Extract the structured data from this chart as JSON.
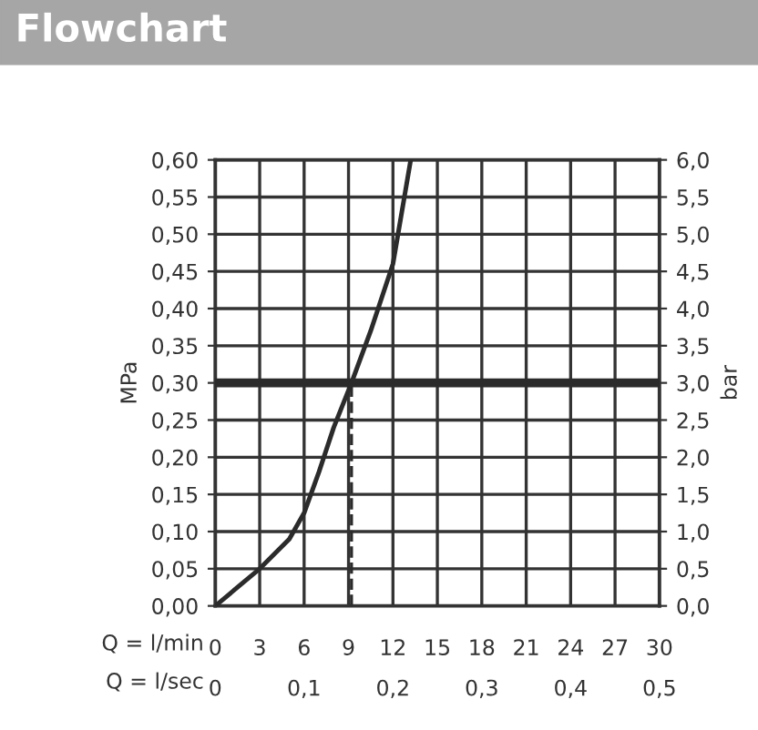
{
  "chart_data": {
    "type": "line",
    "title": "Flowchart",
    "xlabel": "Q = l/min",
    "x2label": "Q = l/sec",
    "ylabel": "MPa",
    "y2label": "bar",
    "series": [
      {
        "color": "#2b2b2b",
        "x": [
          0,
          3,
          5,
          6,
          7,
          8,
          9.2,
          10.5,
          12,
          13.2
        ],
        "values": [
          0,
          0.05,
          0.09,
          0.125,
          0.18,
          0.24,
          0.3,
          0.37,
          0.46,
          0.6
        ]
      }
    ],
    "xlim": [
      0,
      30
    ],
    "xticks": [
      0,
      3,
      6,
      9,
      12,
      15,
      18,
      21,
      24,
      27,
      30
    ],
    "x2lim": [
      0,
      0.5
    ],
    "x2ticks": [
      0,
      {
        "value": 0.1,
        "label": "0,1"
      },
      {
        "value": 0.2,
        "label": "0,2"
      },
      {
        "value": 0.3,
        "label": "0,3"
      },
      {
        "value": 0.4,
        "label": "0,4"
      },
      {
        "value": 0.5,
        "label": "0,5"
      }
    ],
    "ylim": [
      0,
      0.6
    ],
    "yticks": [
      {
        "value": 0,
        "label": "0,00"
      },
      {
        "value": 0.05,
        "label": "0,05"
      },
      {
        "value": 0.1,
        "label": "0,10"
      },
      {
        "value": 0.15,
        "label": "0,15"
      },
      {
        "value": 0.2,
        "label": "0,20"
      },
      {
        "value": 0.25,
        "label": "0,25"
      },
      {
        "value": 0.3,
        "label": "0,30"
      },
      {
        "value": 0.35,
        "label": "0,35"
      },
      {
        "value": 0.4,
        "label": "0,40"
      },
      {
        "value": 0.45,
        "label": "0,45"
      },
      {
        "value": 0.5,
        "label": "0,50"
      },
      {
        "value": 0.55,
        "label": "0,55"
      },
      {
        "value": 0.6,
        "label": "0,60"
      }
    ],
    "y2lim": [
      0,
      6
    ],
    "y2ticks": [
      {
        "value": 0,
        "label": "0,0"
      },
      {
        "value": 0.5,
        "label": "0,5"
      },
      {
        "value": 1,
        "label": "1,0"
      },
      {
        "value": 1.5,
        "label": "1,5"
      },
      {
        "value": 2,
        "label": "2,0"
      },
      {
        "value": 2.5,
        "label": "2,5"
      },
      {
        "value": 3,
        "label": "3,0"
      },
      {
        "value": 3.5,
        "label": "3,5"
      },
      {
        "value": 4,
        "label": "4,0"
      },
      {
        "value": 4.5,
        "label": "4,5"
      },
      {
        "value": 5,
        "label": "5,0"
      },
      {
        "value": 5.5,
        "label": "5,5"
      },
      {
        "value": 6,
        "label": "6,0"
      }
    ],
    "ref_lines": [
      {
        "axis": "y",
        "value": 0.3,
        "color": "#2b2b2b",
        "line_style": "solid"
      },
      {
        "axis": "x",
        "value": 9.2,
        "color": "#2b2b2b",
        "line_style": "dashed"
      }
    ],
    "grid": true,
    "marker": "none",
    "line_style": "solid"
  }
}
